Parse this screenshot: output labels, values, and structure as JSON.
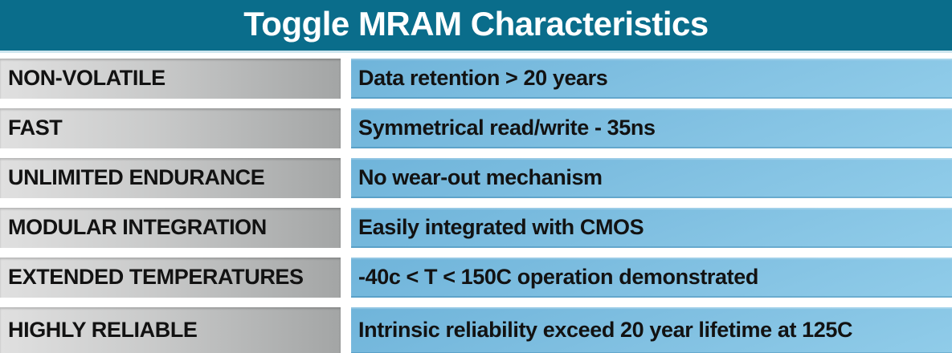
{
  "title": "Toggle MRAM Characteristics",
  "rows": [
    {
      "label": "NON-VOLATILE",
      "value": "Data retention > 20 years"
    },
    {
      "label": "FAST",
      "value": "Symmetrical read/write - 35ns"
    },
    {
      "label": "UNLIMITED ENDURANCE",
      "value": "No wear-out mechanism"
    },
    {
      "label": "MODULAR INTEGRATION",
      "value": "Easily integrated with CMOS"
    },
    {
      "label": "EXTENDED TEMPERATURES",
      "value": "-40c < T < 150C operation demonstrated"
    },
    {
      "label": "HIGHLY RELIABLE",
      "value": "Intrinsic reliability exceed 20 year lifetime at 125C"
    }
  ],
  "colors": {
    "header_background": "#0a6d8b",
    "header_text": "#ffffff",
    "label_gradient_start": "#e0e0e0",
    "label_gradient_end": "#a3a5a5",
    "value_gradient_start": "#6fb4da",
    "value_gradient_end": "#90cce9",
    "cell_text": "#121212",
    "background": "#ffffff"
  },
  "chart_data": {
    "type": "table",
    "title": "Toggle MRAM Characteristics",
    "rows": [
      [
        "NON-VOLATILE",
        "Data retention > 20 years"
      ],
      [
        "FAST",
        "Symmetrical read/write - 35ns"
      ],
      [
        "UNLIMITED ENDURANCE",
        "No wear-out mechanism"
      ],
      [
        "MODULAR INTEGRATION",
        "Easily integrated with CMOS"
      ],
      [
        "EXTENDED TEMPERATURES",
        "-40c < T < 150C operation demonstrated"
      ],
      [
        "HIGHLY RELIABLE",
        "Intrinsic reliability exceed 20 year lifetime at 125C"
      ]
    ],
    "layout": {
      "header_row": false,
      "label_column_style": "gray-gradient",
      "value_column_style": "blue-gradient"
    }
  }
}
